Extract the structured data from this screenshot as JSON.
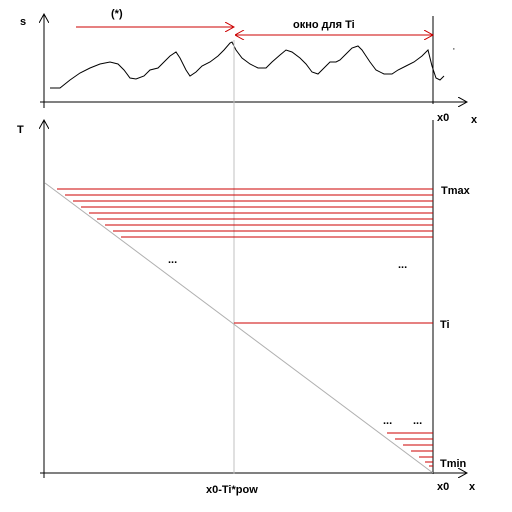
{
  "colors": {
    "axis": "#000000",
    "guide": "#c0c0c0",
    "signal": "#000000",
    "accent": "#cc0000"
  },
  "top_plot": {
    "y_label": "s",
    "x_label": "x",
    "x0_label": "x0",
    "arrow_label": "(*)",
    "window_label": "окно для Ti"
  },
  "bottom_plot": {
    "y_label": "T",
    "x_label": "x",
    "x0_label": "x0",
    "t_max_label": "Tmax",
    "t_i_label": "Ti",
    "t_min_label": "Tmin",
    "diag_label": "x0-Ti*pow",
    "ellipsis": "..."
  }
}
